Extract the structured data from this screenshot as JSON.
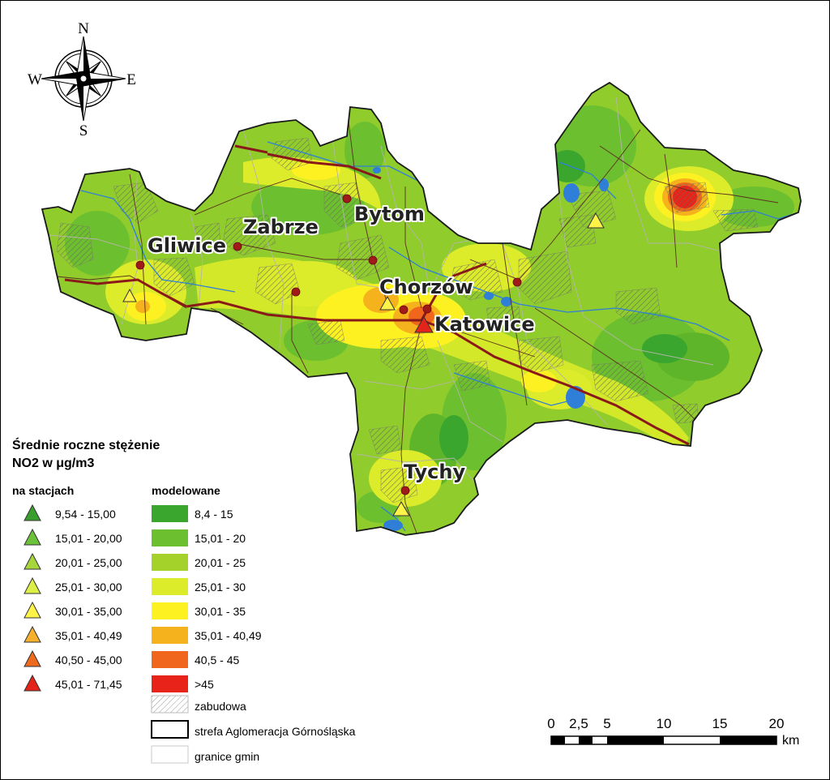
{
  "compass": {
    "n": "N",
    "s": "S",
    "e": "E",
    "w": "W"
  },
  "cities": [
    {
      "name": "Gliwice",
      "label_key": "gliwice"
    },
    {
      "name": "Zabrze",
      "label_key": "zabrze"
    },
    {
      "name": "Bytom",
      "label_key": "bytom"
    },
    {
      "name": "Chorzów",
      "label_key": "chorzow"
    },
    {
      "name": "Katowice",
      "label_key": "katowice"
    },
    {
      "name": "Tychy",
      "label_key": "tychy"
    }
  ],
  "legend": {
    "title_line1": "Średnie roczne stężenie",
    "title_line2": "NO2 w μg/m3",
    "stations_header": "na stacjach",
    "modeled_header": "modelowane",
    "stations": [
      {
        "label": "9,54 - 15,00",
        "color": "#3a9e2e"
      },
      {
        "label": "15,01 - 20,00",
        "color": "#6cc13a"
      },
      {
        "label": "20,01 - 25,00",
        "color": "#a6d63c"
      },
      {
        "label": "25,01 - 30,00",
        "color": "#dcef46"
      },
      {
        "label": "30,01 - 35,00",
        "color": "#fff34a"
      },
      {
        "label": "35,01 - 40,49",
        "color": "#f6b02c"
      },
      {
        "label": "40,50 - 45,00",
        "color": "#ee6a1e"
      },
      {
        "label": "45,01 - 71,45",
        "color": "#e4231a"
      }
    ],
    "modeled": [
      {
        "label": "8,4 - 15",
        "color": "#3aa62e"
      },
      {
        "label": "15,01 - 20",
        "color": "#6cbf2e"
      },
      {
        "label": "20,01 - 25",
        "color": "#a4d22a"
      },
      {
        "label": "25,01 - 30",
        "color": "#dceb2a"
      },
      {
        "label": "30,01 - 35",
        "color": "#fdf122"
      },
      {
        "label": "35,01 - 40,49",
        "color": "#f5b21c"
      },
      {
        "label": "40,5 - 45",
        "color": "#f0661c"
      },
      {
        "label": ">45",
        "color": "#e8231a"
      }
    ],
    "built_up": "zabudowa",
    "zone": "strefa Aglomeracja Górnośląska",
    "communes": "granice gmin"
  },
  "scale": {
    "ticks": [
      "0",
      "2,5",
      "5",
      "10",
      "15",
      "20"
    ],
    "unit": "km"
  }
}
